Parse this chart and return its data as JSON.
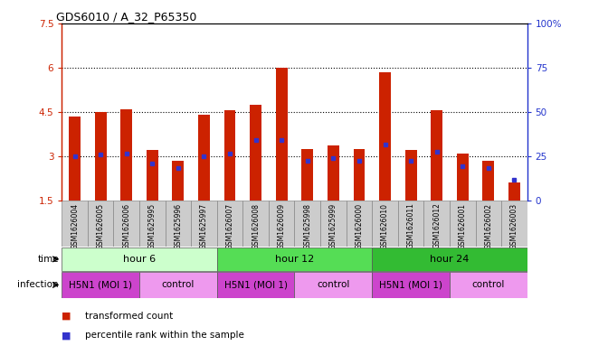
{
  "title": "GDS6010 / A_32_P65350",
  "samples": [
    "GSM1626004",
    "GSM1626005",
    "GSM1626006",
    "GSM1625995",
    "GSM1625996",
    "GSM1625997",
    "GSM1626007",
    "GSM1626008",
    "GSM1626009",
    "GSM1625998",
    "GSM1625999",
    "GSM1626000",
    "GSM1626010",
    "GSM1626011",
    "GSM1626012",
    "GSM1626001",
    "GSM1626002",
    "GSM1626003"
  ],
  "bar_values": [
    4.35,
    4.5,
    4.6,
    3.2,
    2.85,
    4.4,
    4.55,
    4.75,
    6.0,
    3.25,
    3.35,
    3.25,
    5.85,
    3.2,
    4.55,
    3.1,
    2.85,
    2.1
  ],
  "blue_dot_values": [
    3.0,
    3.05,
    3.1,
    2.75,
    2.6,
    3.0,
    3.1,
    3.55,
    3.55,
    2.85,
    2.95,
    2.85,
    3.4,
    2.85,
    3.15,
    2.65,
    2.6,
    2.2
  ],
  "bar_color": "#cc2200",
  "blue_dot_color": "#3333cc",
  "ymin": 1.5,
  "ymax": 7.5,
  "yticks": [
    1.5,
    3.0,
    4.5,
    6.0,
    7.5
  ],
  "ytick_labels": [
    "1.5",
    "3",
    "4.5",
    "6",
    "7.5"
  ],
  "right_yticks": [
    0,
    25,
    50,
    75,
    100
  ],
  "right_ytick_labels": [
    "0",
    "25",
    "50",
    "75",
    "100%"
  ],
  "dotted_lines": [
    3.0,
    4.5,
    6.0
  ],
  "time_groups": [
    {
      "label": "hour 6",
      "start": 0,
      "end": 6,
      "color": "#ccffcc"
    },
    {
      "label": "hour 12",
      "start": 6,
      "end": 12,
      "color": "#55dd55"
    },
    {
      "label": "hour 24",
      "start": 12,
      "end": 18,
      "color": "#33bb33"
    }
  ],
  "infection_groups": [
    {
      "label": "H5N1 (MOI 1)",
      "start": 0,
      "end": 3,
      "color": "#cc44cc"
    },
    {
      "label": "control",
      "start": 3,
      "end": 6,
      "color": "#ee99ee"
    },
    {
      "label": "H5N1 (MOI 1)",
      "start": 6,
      "end": 9,
      "color": "#cc44cc"
    },
    {
      "label": "control",
      "start": 9,
      "end": 12,
      "color": "#ee99ee"
    },
    {
      "label": "H5N1 (MOI 1)",
      "start": 12,
      "end": 15,
      "color": "#cc44cc"
    },
    {
      "label": "control",
      "start": 15,
      "end": 18,
      "color": "#ee99ee"
    }
  ],
  "sample_bg_color": "#cccccc",
  "legend_items": [
    {
      "label": "transformed count",
      "color": "#cc2200"
    },
    {
      "label": "percentile rank within the sample",
      "color": "#3333cc"
    }
  ],
  "bg_color": "#ffffff",
  "bar_width": 0.45
}
